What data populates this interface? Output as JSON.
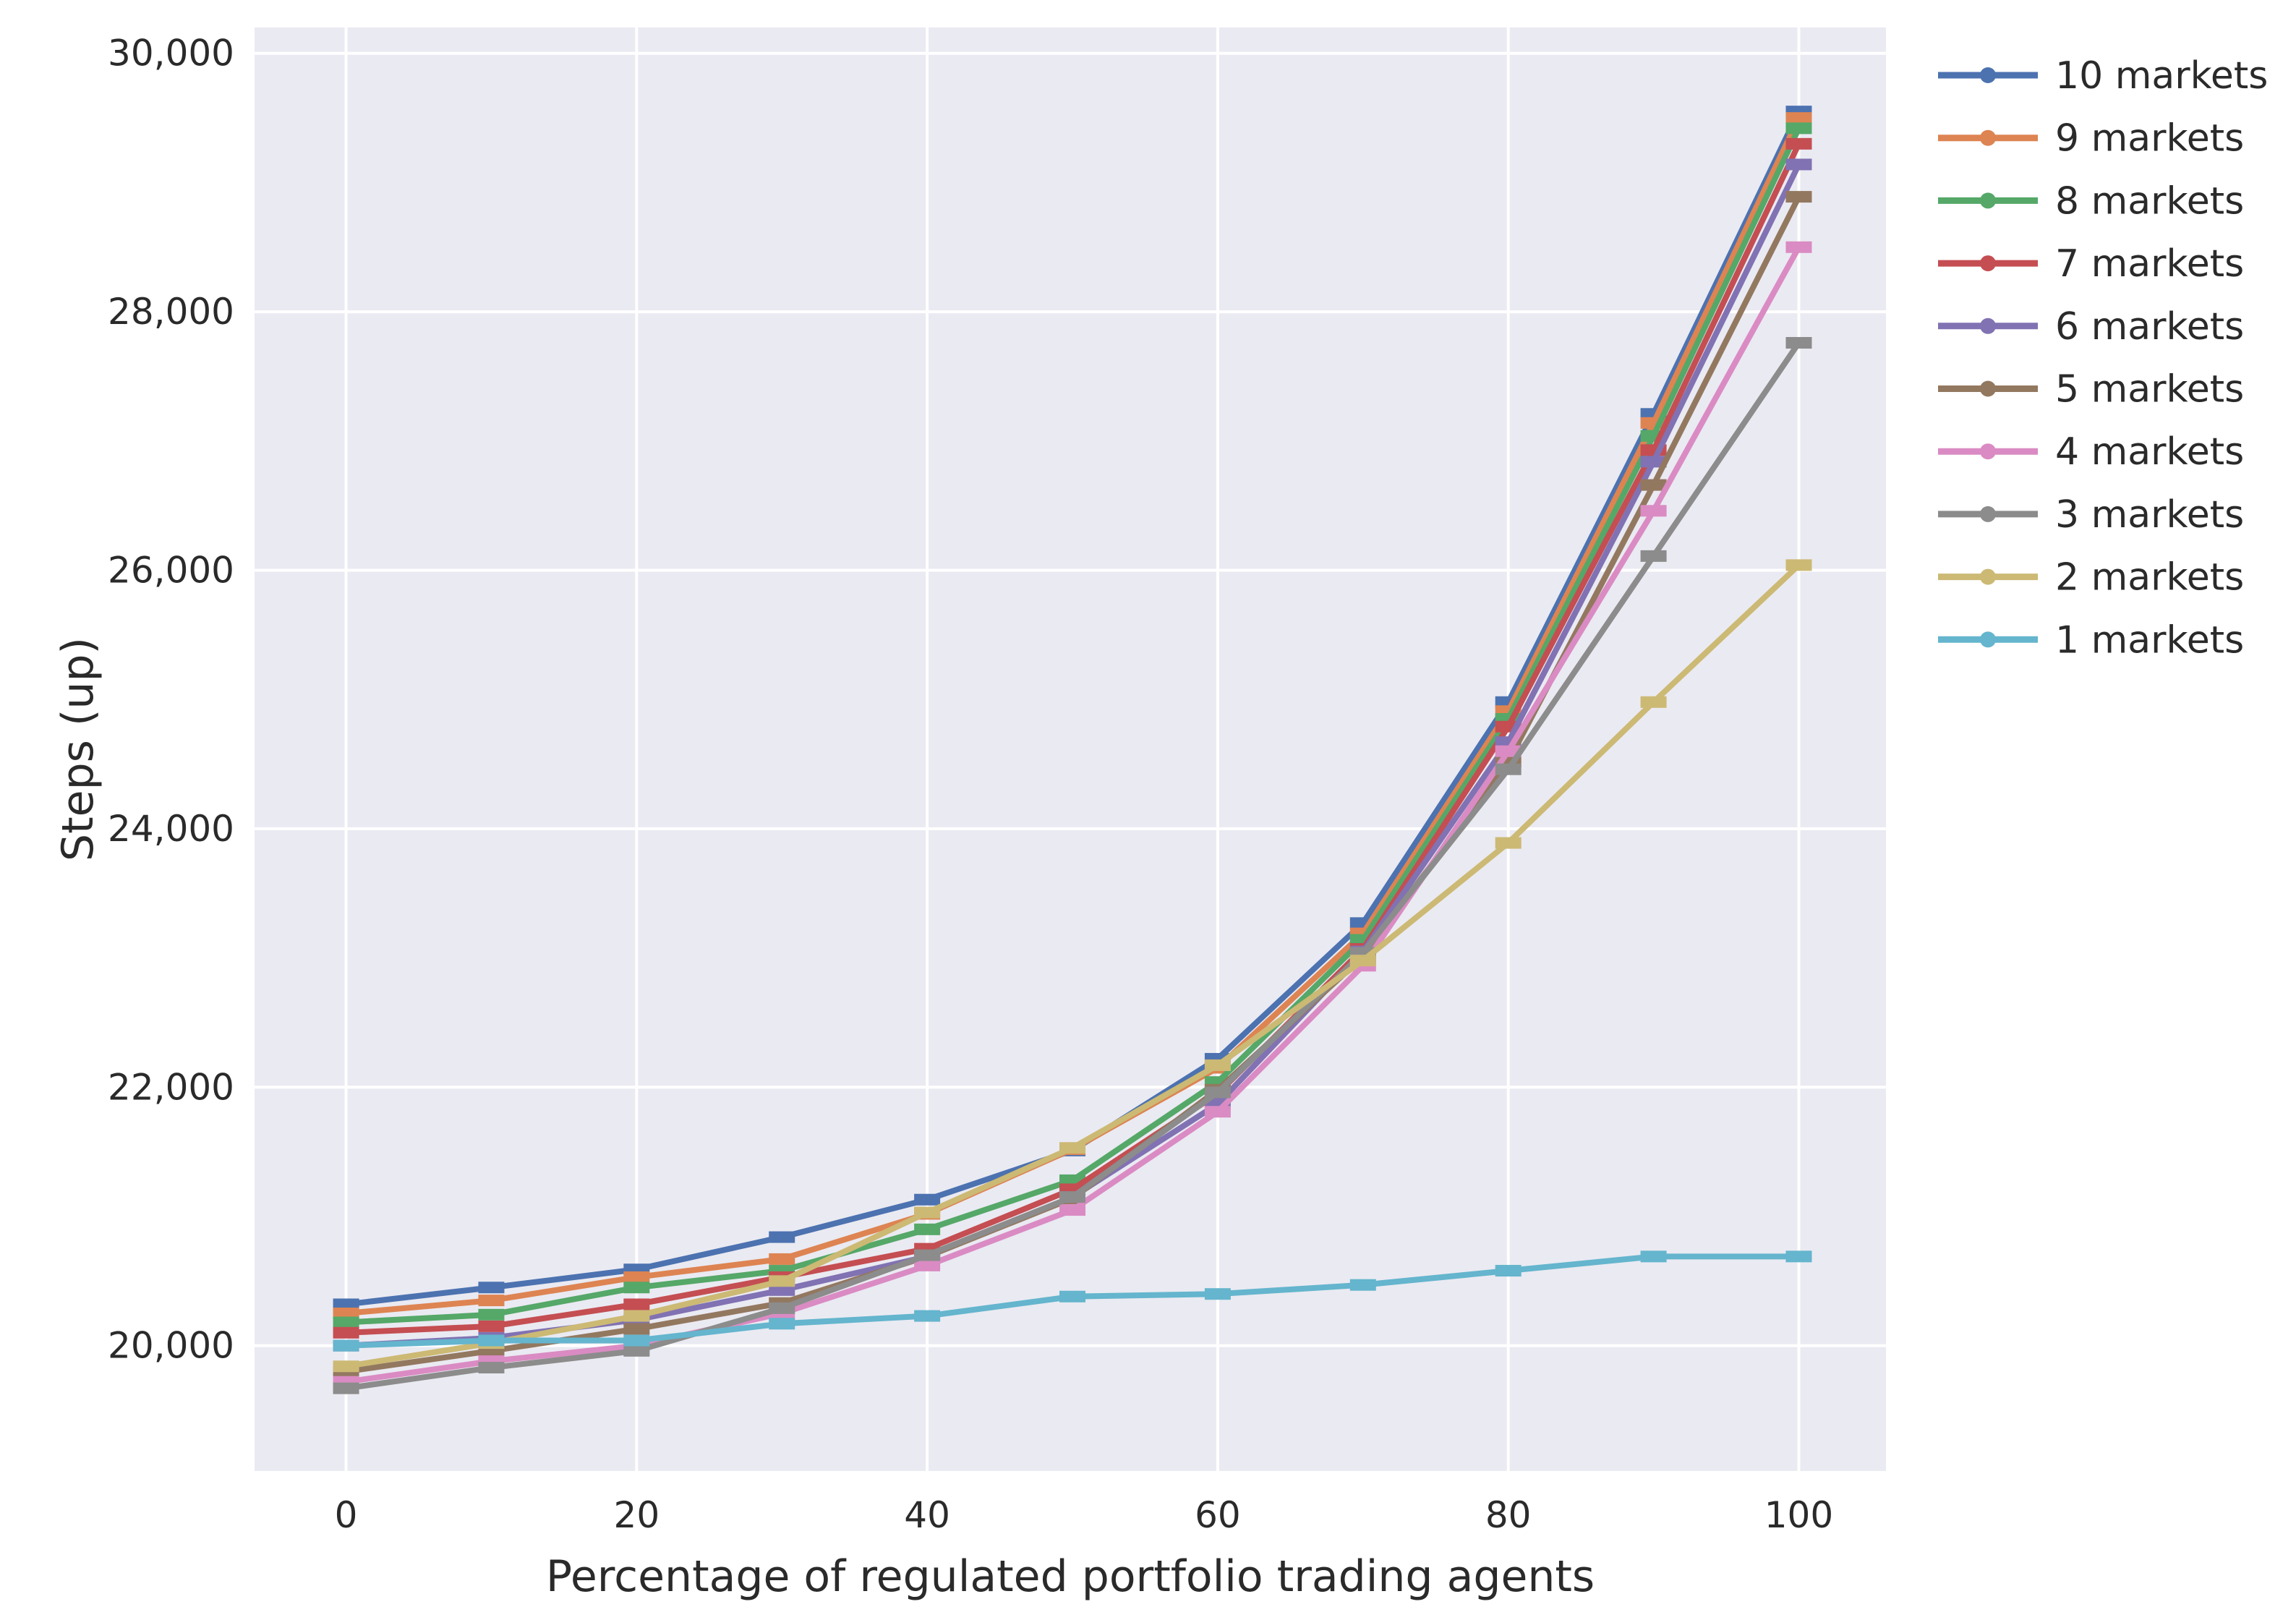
{
  "chart_data": {
    "type": "line",
    "title": "",
    "xlabel": "Percentage of regulated portfolio trading agents",
    "ylabel": "Steps (up)",
    "x": [
      0,
      10,
      20,
      30,
      40,
      50,
      60,
      70,
      80,
      90,
      100
    ],
    "xlim": [
      -6.3,
      106
    ],
    "ylim": [
      19030,
      30200
    ],
    "xticks": [
      0,
      20,
      40,
      60,
      80,
      100
    ],
    "xtick_labels": [
      "0",
      "20",
      "40",
      "60",
      "80",
      "100"
    ],
    "yticks": [
      20000,
      22000,
      24000,
      26000,
      28000,
      30000
    ],
    "ytick_labels": [
      "20,000",
      "22,000",
      "24,000",
      "26,000",
      "28,000",
      "30,000"
    ],
    "grid": true,
    "legend_position": "right",
    "series": [
      {
        "name": "10 markets",
        "color": "#4c72b0",
        "values": [
          20320,
          20450,
          20590,
          20840,
          21130,
          21510,
          22220,
          23270,
          24980,
          27210,
          29550
        ]
      },
      {
        "name": "9 markets",
        "color": "#dd8452",
        "values": [
          20250,
          20350,
          20530,
          20670,
          21020,
          21520,
          22150,
          23190,
          24910,
          27140,
          29500
        ]
      },
      {
        "name": "8 markets",
        "color": "#55a868",
        "values": [
          20180,
          20240,
          20450,
          20580,
          20900,
          21280,
          22040,
          23140,
          24850,
          27040,
          29420
        ]
      },
      {
        "name": "7 markets",
        "color": "#c44e52",
        "values": [
          20100,
          20150,
          20320,
          20530,
          20750,
          21210,
          21950,
          23070,
          24790,
          26930,
          29300
        ]
      },
      {
        "name": "6 markets",
        "color": "#8172b3",
        "values": [
          20000,
          20060,
          20200,
          20430,
          20690,
          21150,
          21870,
          23050,
          24670,
          26840,
          29140
        ]
      },
      {
        "name": "5 markets",
        "color": "#937860",
        "values": [
          19800,
          19960,
          20130,
          20330,
          20690,
          21140,
          21980,
          23010,
          24520,
          26660,
          28890
        ]
      },
      {
        "name": "4 markets",
        "color": "#da8bc3",
        "values": [
          19720,
          19880,
          20000,
          20250,
          20620,
          21050,
          21810,
          22940,
          24600,
          26460,
          28500
        ]
      },
      {
        "name": "3 markets",
        "color": "#8c8c8c",
        "values": [
          19670,
          19830,
          19960,
          20290,
          20700,
          21150,
          21960,
          23040,
          24460,
          26110,
          27760
        ]
      },
      {
        "name": "2 markets",
        "color": "#ccb974",
        "values": [
          19840,
          20020,
          20230,
          20500,
          21030,
          21530,
          22170,
          22980,
          23890,
          24980,
          26040
        ]
      },
      {
        "name": "1 markets",
        "color": "#64b5cd",
        "values": [
          20000,
          20040,
          20040,
          20170,
          20230,
          20380,
          20400,
          20470,
          20580,
          20690,
          20690
        ]
      }
    ]
  }
}
